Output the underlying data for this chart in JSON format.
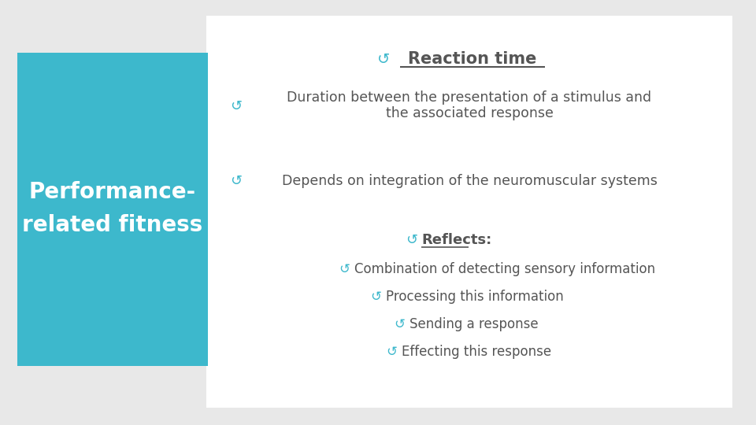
{
  "background_color": "#e8e8e8",
  "left_panel_color": "#3db8cc",
  "left_panel_text": "Performance-\nrelated fitness",
  "left_panel_text_color": "#ffffff",
  "right_panel_color": "#ffffff",
  "title_text": "Reaction time",
  "title_color": "#555555",
  "bullet_color": "#3db8cc",
  "text_color": "#555555",
  "bullet1_line1": "Duration between the presentation of a stimulus and",
  "bullet1_line2": "the associated response",
  "bullet2": "Depends on integration of the neuromuscular systems",
  "sub_title": "Reflects:",
  "sub_title_color": "#555555",
  "sub_bullet1": "Combination of detecting sensory information",
  "sub_bullet2": "Processing this information",
  "sub_bullet3": "Sending a response",
  "sub_bullet4": "Effecting this response",
  "figwidth": 9.6,
  "figheight": 5.4,
  "dpi": 100
}
